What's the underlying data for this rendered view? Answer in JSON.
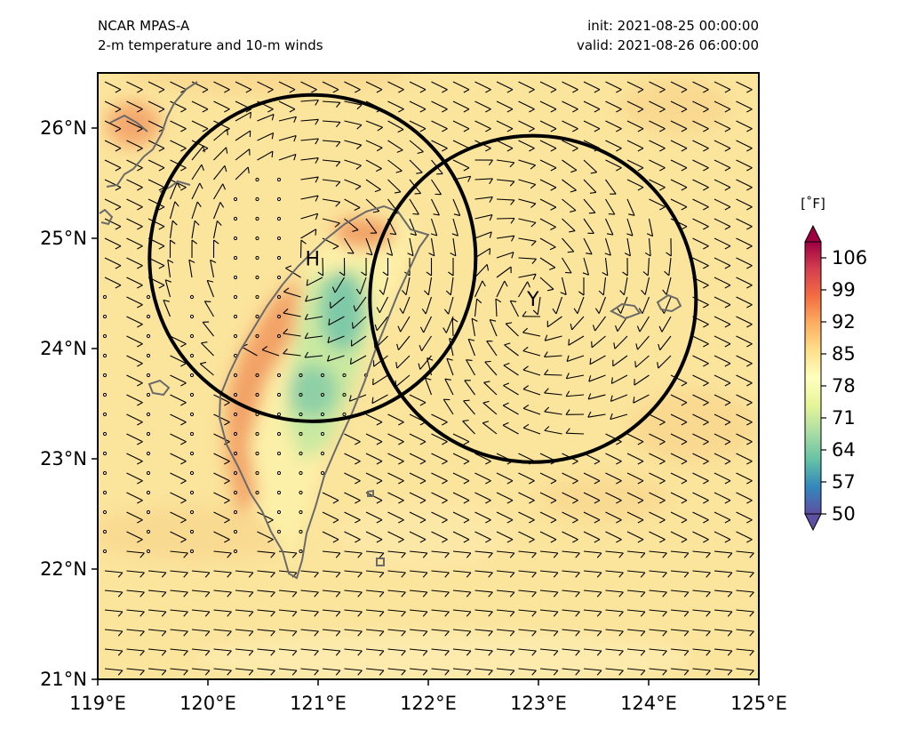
{
  "header": {
    "model": "NCAR MPAS-A",
    "field": "2-m temperature and 10-m winds",
    "init": "init: 2021-08-25 00:00:00",
    "valid": "valid: 2021-08-26 06:00:00"
  },
  "map": {
    "extent": {
      "lon": [
        119,
        125
      ],
      "lat": [
        21,
        26.5
      ]
    },
    "lon_ticks": [
      "119°E",
      "120°E",
      "121°E",
      "122°E",
      "123°E",
      "124°E",
      "125°E"
    ],
    "lat_ticks": [
      "21°N",
      "22°N",
      "23°N",
      "24°N",
      "25°N",
      "26°N"
    ],
    "background_color": "#fbe49c",
    "centers": [
      {
        "label": "H",
        "lon": 120.95,
        "lat": 24.82,
        "radius_deg": 1.48
      },
      {
        "label": "Y",
        "lon": 122.95,
        "lat": 24.45,
        "radius_deg": 1.48
      }
    ]
  },
  "colorbar": {
    "unit": "[˚F]",
    "ticks": [
      "50",
      "57",
      "64",
      "71",
      "78",
      "85",
      "92",
      "99",
      "106"
    ],
    "colormap": [
      "#5e4fa2",
      "#3288bd",
      "#66c2a5",
      "#abdda4",
      "#e6f598",
      "#ffffbf",
      "#fee08b",
      "#fdae61",
      "#f46d43",
      "#d53e4f",
      "#9e0142"
    ]
  }
}
